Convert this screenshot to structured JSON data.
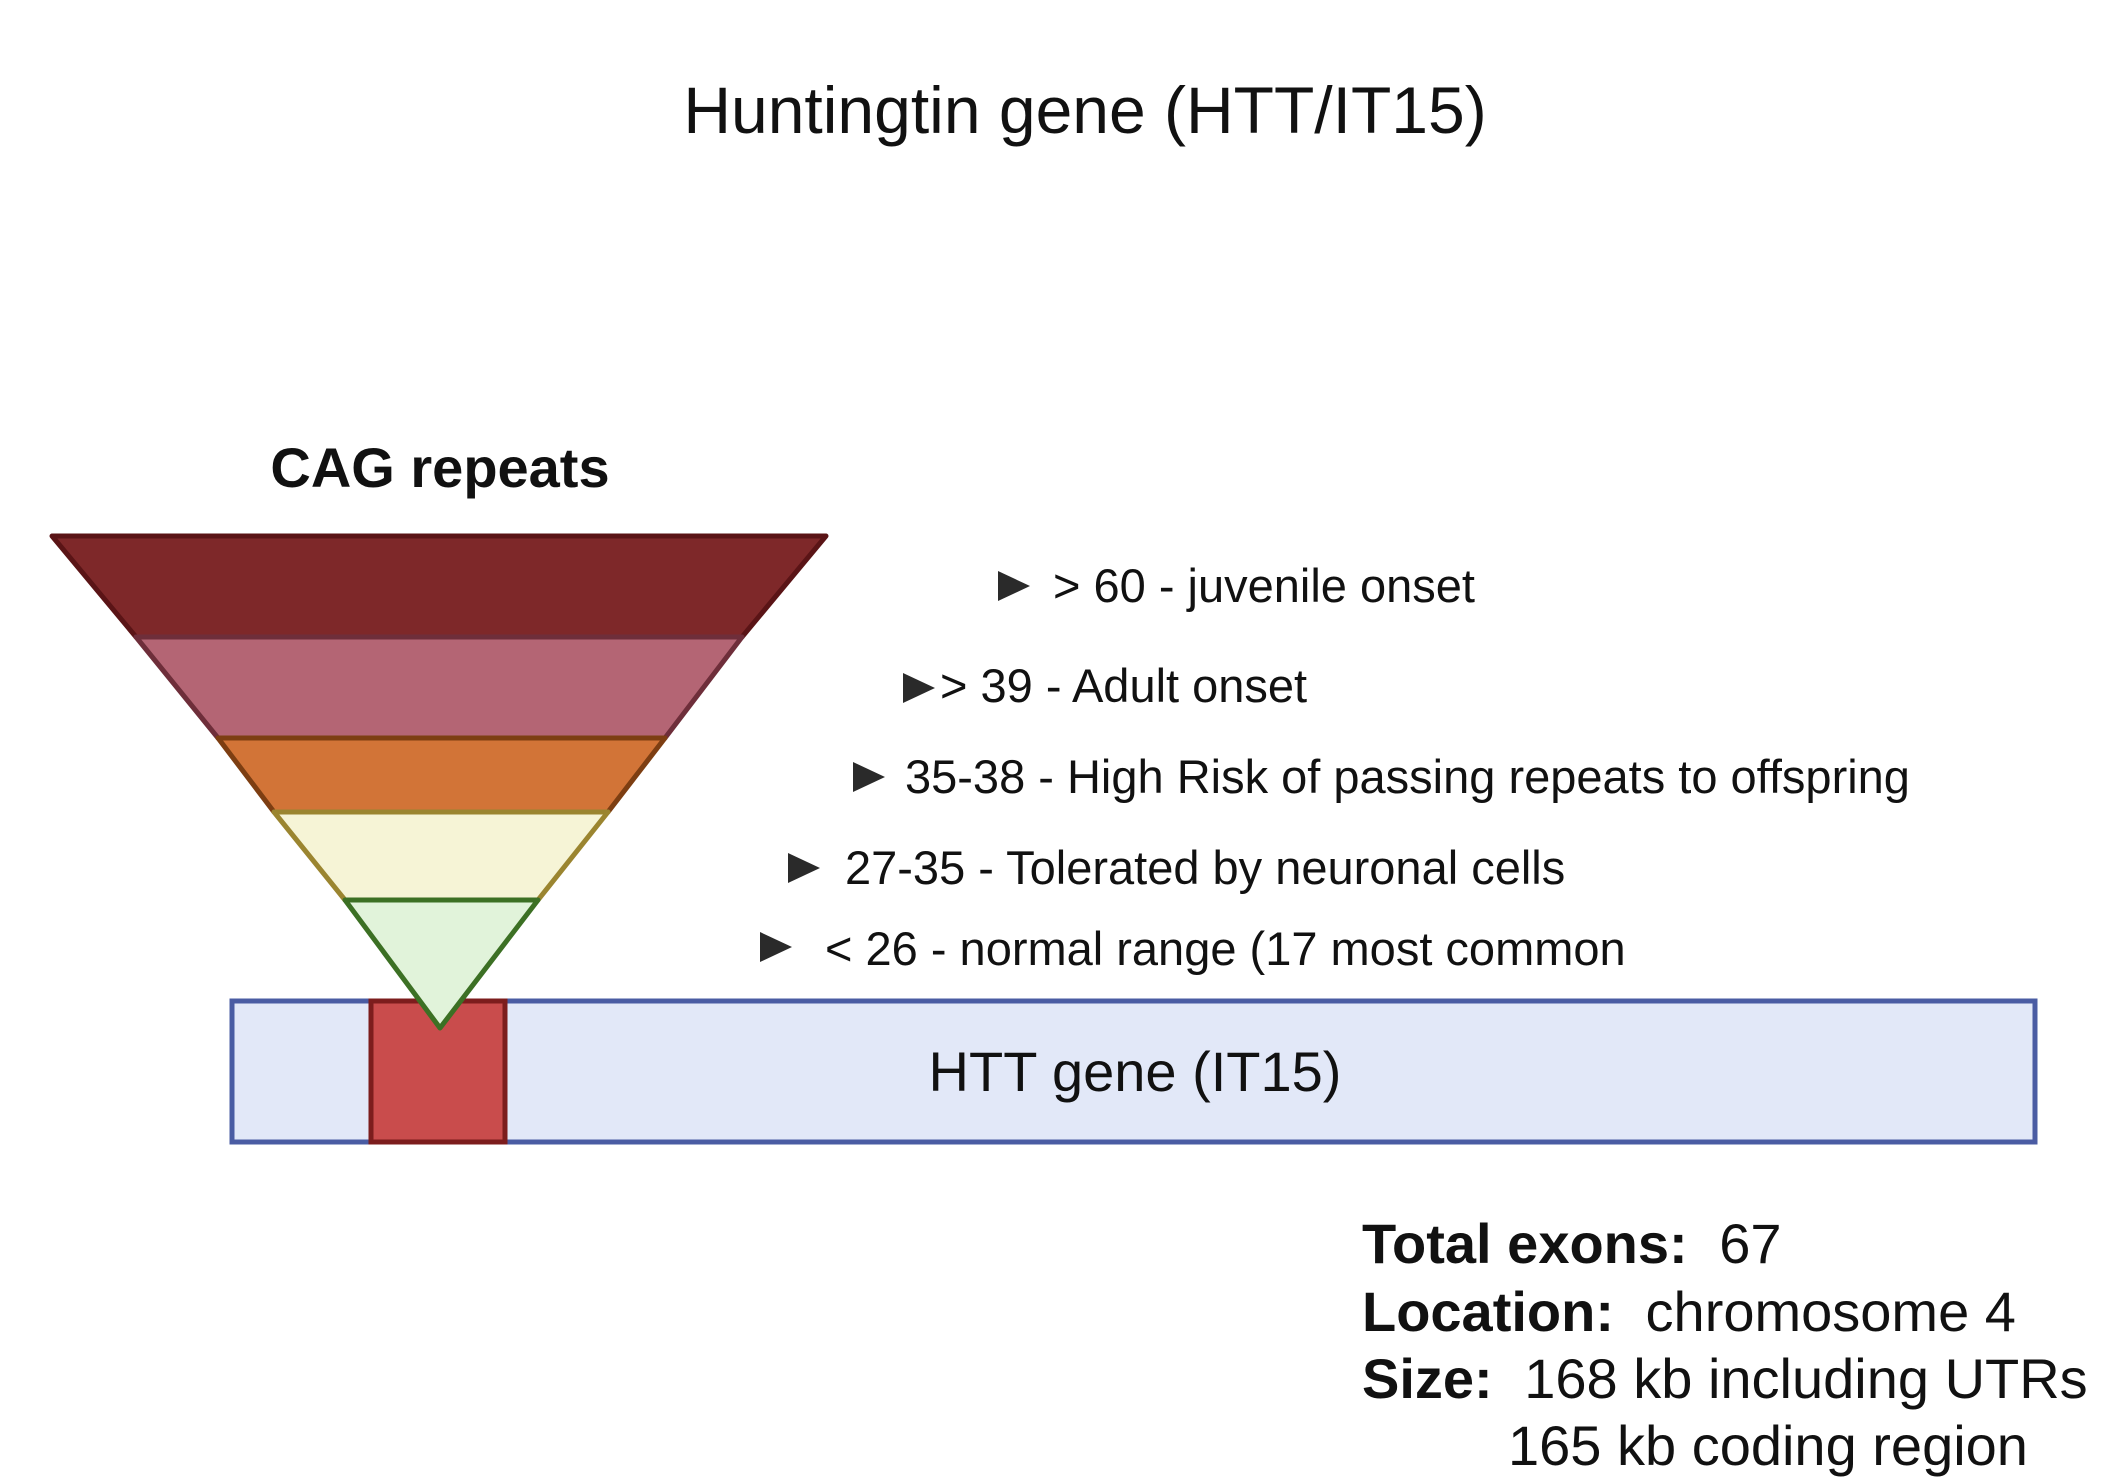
{
  "title": "Huntingtin gene (HTT/IT15)",
  "funnel": {
    "header": "CAG repeats",
    "bands": [
      {
        "label": "> 60 - juvenile onset",
        "fill": "#7e2829",
        "stroke": "#5a1416"
      },
      {
        "label": "> 39 - Adult onset",
        "fill": "#b46574",
        "stroke": "#6e2e3a"
      },
      {
        "label": "35-38 - High Risk of passing repeats to offspring",
        "fill": "#d27437",
        "stroke": "#7d3e12"
      },
      {
        "label": "27-35 - Tolerated by neuronal cells",
        "fill": "#f6f4d6",
        "stroke": "#9b8530"
      },
      {
        "label": "< 26 - normal range (17 most common",
        "fill": "#e1f3da",
        "stroke": "#3c7024"
      }
    ]
  },
  "gene": {
    "label": "HTT gene (IT15)",
    "fill": "#e2e8f8",
    "stroke": "#4a5ca3",
    "repeat_block_fill": "#c94c4c",
    "repeat_block_stroke": "#7c1d1d"
  },
  "info": {
    "exons_key": "Total exons:",
    "exons_value": "67",
    "location_key": "Location:",
    "location_value": "chromosome 4",
    "size_key": "Size:",
    "size_value_1": "168 kb including UTRs",
    "size_value_2": "165 kb coding region"
  }
}
